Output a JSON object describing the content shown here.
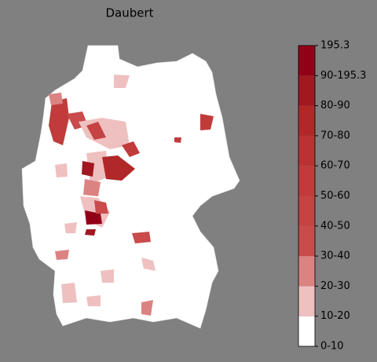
{
  "title": "Daubert",
  "legend": {
    "labels": [
      "0-10",
      "10-20",
      "20-30",
      "30-40",
      "40-50",
      "50-60",
      "60-70",
      "70-80",
      "80-90",
      "90-195.3",
      "195.3"
    ],
    "colors": [
      "#ffffff",
      "#efc0c0",
      "#dc8282",
      "#c94b4b",
      "#c54343",
      "#c13b3b",
      "#ba3232",
      "#b02828",
      "#a11820",
      "#920018"
    ]
  }
}
